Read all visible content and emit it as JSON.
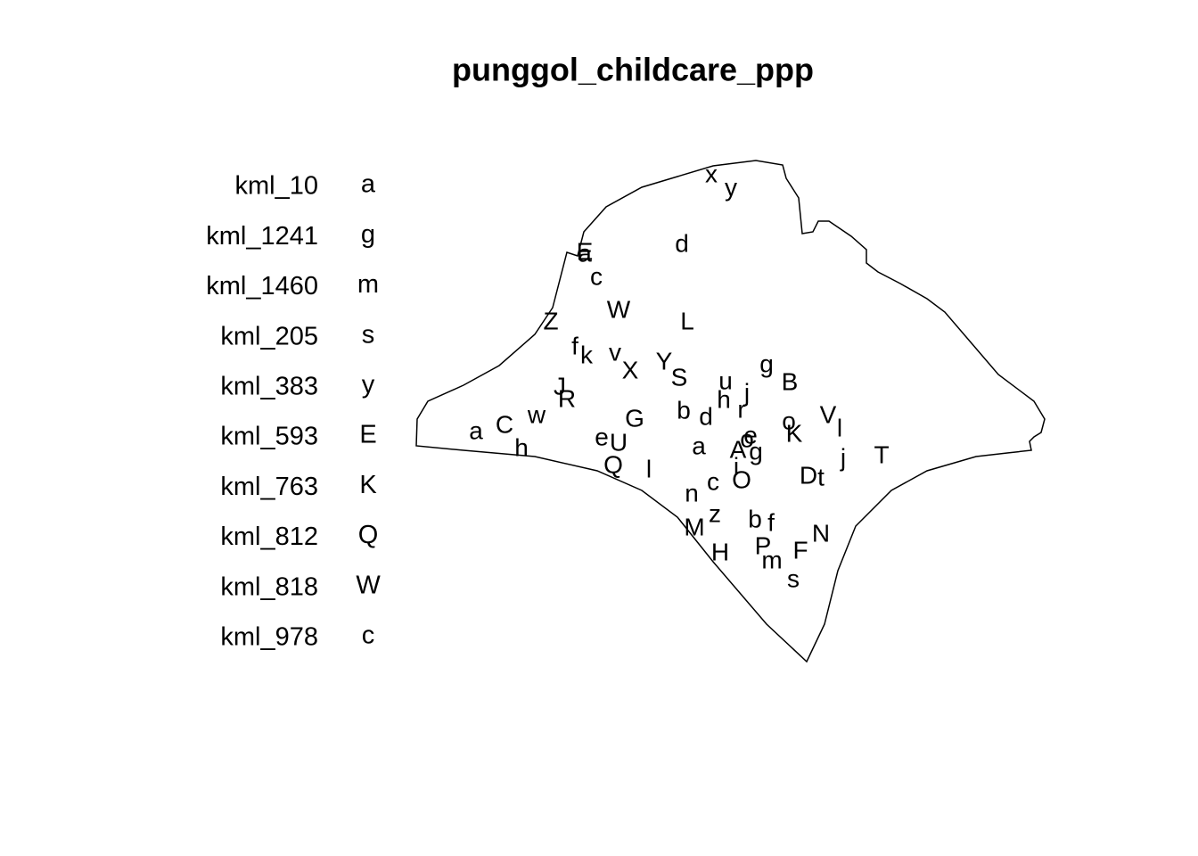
{
  "chart_data": {
    "type": "scatter",
    "title": "punggol_childcare_ppp",
    "legend": {
      "names": [
        "kml_10",
        "kml_1241",
        "kml_1460",
        "kml_205",
        "kml_383",
        "kml_593",
        "kml_763",
        "kml_812",
        "kml_818",
        "kml_978"
      ],
      "symbols": [
        "a",
        "g",
        "m",
        "s",
        "y",
        "E",
        "K",
        "Q",
        "W",
        "c"
      ]
    },
    "xlim": [
      467,
      1172
    ],
    "ylim": [
      742,
      180
    ],
    "points": [
      {
        "label": "x",
        "x": 798,
        "y": 197
      },
      {
        "label": "y",
        "x": 820,
        "y": 212
      },
      {
        "label": "d",
        "x": 765,
        "y": 275
      },
      {
        "label": "E",
        "x": 656,
        "y": 284
      },
      {
        "label": "a",
        "x": 656,
        "y": 286
      },
      {
        "label": "c",
        "x": 669,
        "y": 312
      },
      {
        "label": "W",
        "x": 694,
        "y": 349
      },
      {
        "label": "L",
        "x": 771,
        "y": 362
      },
      {
        "label": "Z",
        "x": 618,
        "y": 362
      },
      {
        "label": "f",
        "x": 645,
        "y": 390
      },
      {
        "label": "k",
        "x": 658,
        "y": 400
      },
      {
        "label": "v",
        "x": 690,
        "y": 397
      },
      {
        "label": "X",
        "x": 707,
        "y": 417
      },
      {
        "label": "Y",
        "x": 745,
        "y": 407
      },
      {
        "label": "S",
        "x": 762,
        "y": 425
      },
      {
        "label": "g",
        "x": 860,
        "y": 410
      },
      {
        "label": "B",
        "x": 886,
        "y": 430
      },
      {
        "label": "u",
        "x": 814,
        "y": 429
      },
      {
        "label": "j",
        "x": 838,
        "y": 442
      },
      {
        "label": "h",
        "x": 812,
        "y": 450
      },
      {
        "label": "r",
        "x": 832,
        "y": 461
      },
      {
        "label": "J",
        "x": 628,
        "y": 435
      },
      {
        "label": "R",
        "x": 636,
        "y": 449
      },
      {
        "label": "w",
        "x": 602,
        "y": 467
      },
      {
        "label": "G",
        "x": 712,
        "y": 471
      },
      {
        "label": "b",
        "x": 767,
        "y": 462
      },
      {
        "label": "d",
        "x": 792,
        "y": 469
      },
      {
        "label": "o",
        "x": 885,
        "y": 474
      },
      {
        "label": "V",
        "x": 929,
        "y": 467
      },
      {
        "label": "l",
        "x": 942,
        "y": 482
      },
      {
        "label": "K",
        "x": 891,
        "y": 488
      },
      {
        "label": "a",
        "x": 534,
        "y": 485
      },
      {
        "label": "C",
        "x": 566,
        "y": 478
      },
      {
        "label": "h",
        "x": 585,
        "y": 504
      },
      {
        "label": "e",
        "x": 675,
        "y": 492
      },
      {
        "label": "U",
        "x": 694,
        "y": 498
      },
      {
        "label": "a",
        "x": 784,
        "y": 502
      },
      {
        "label": "e",
        "x": 842,
        "y": 490
      },
      {
        "label": "o",
        "x": 838,
        "y": 494
      },
      {
        "label": "g",
        "x": 848,
        "y": 508
      },
      {
        "label": "A",
        "x": 828,
        "y": 506
      },
      {
        "label": "j",
        "x": 946,
        "y": 515
      },
      {
        "label": "T",
        "x": 989,
        "y": 512
      },
      {
        "label": "Q",
        "x": 688,
        "y": 523
      },
      {
        "label": "l",
        "x": 728,
        "y": 528
      },
      {
        "label": "i",
        "x": 826,
        "y": 525
      },
      {
        "label": "c",
        "x": 800,
        "y": 542
      },
      {
        "label": "O",
        "x": 832,
        "y": 540
      },
      {
        "label": "D",
        "x": 907,
        "y": 535
      },
      {
        "label": "t",
        "x": 921,
        "y": 537
      },
      {
        "label": "n",
        "x": 776,
        "y": 555
      },
      {
        "label": "z",
        "x": 802,
        "y": 578
      },
      {
        "label": "b",
        "x": 847,
        "y": 584
      },
      {
        "label": "f",
        "x": 865,
        "y": 588
      },
      {
        "label": "M",
        "x": 779,
        "y": 593
      },
      {
        "label": "N",
        "x": 921,
        "y": 600
      },
      {
        "label": "P",
        "x": 856,
        "y": 614
      },
      {
        "label": "F",
        "x": 898,
        "y": 619
      },
      {
        "label": "H",
        "x": 808,
        "y": 621
      },
      {
        "label": "m",
        "x": 866,
        "y": 630
      },
      {
        "label": "s",
        "x": 890,
        "y": 651
      }
    ]
  }
}
